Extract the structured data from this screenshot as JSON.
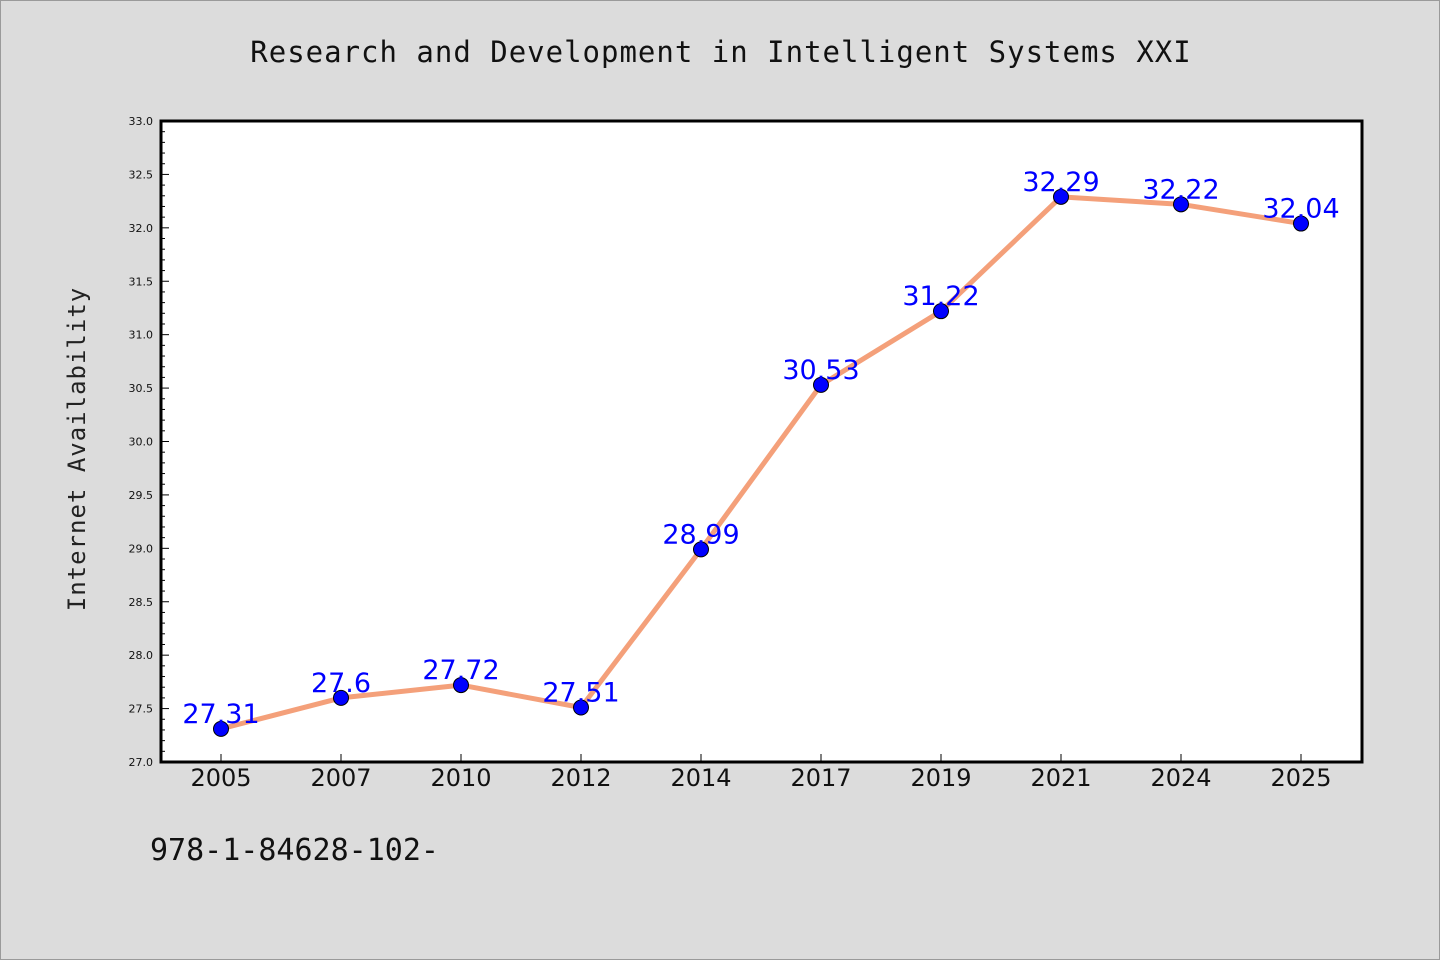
{
  "page": {
    "title": "Research and Development in Intelligent Systems XXI",
    "footer_note": "978-1-84628-102-"
  },
  "chart_data": {
    "type": "line",
    "title": "Research and Development in Intelligent Systems XXI",
    "xlabel": "",
    "ylabel": "Internet Availability",
    "categories": [
      "2005",
      "2007",
      "2010",
      "2012",
      "2014",
      "2017",
      "2019",
      "2021",
      "2024",
      "2025"
    ],
    "series": [
      {
        "values": [
          27.31,
          27.6,
          27.72,
          27.51,
          28.99,
          30.53,
          31.22,
          32.29,
          32.22,
          32.04
        ],
        "data_labels": [
          "27.31",
          "27.6",
          "27.72",
          "27.51",
          "28.99",
          "30.53",
          "31.22",
          "32.29",
          "32.22",
          "32.04"
        ],
        "line_color": "#f4a07a",
        "marker_color": "#0000ff"
      }
    ],
    "ylim": [
      27.0,
      33.0
    ],
    "yticks": [
      "27.0",
      "27.5",
      "28.0",
      "28.5",
      "29.0",
      "29.5",
      "30.0",
      "30.5",
      "31.0",
      "31.5",
      "32.0",
      "32.5",
      "33.0"
    ],
    "grid": false,
    "legend": "none",
    "colors": {
      "background": "#dcdcdc",
      "plot_area": "#ffffff",
      "line": "#f4a07a",
      "marker": "#0000ff",
      "data_label": "#0000ff"
    }
  }
}
